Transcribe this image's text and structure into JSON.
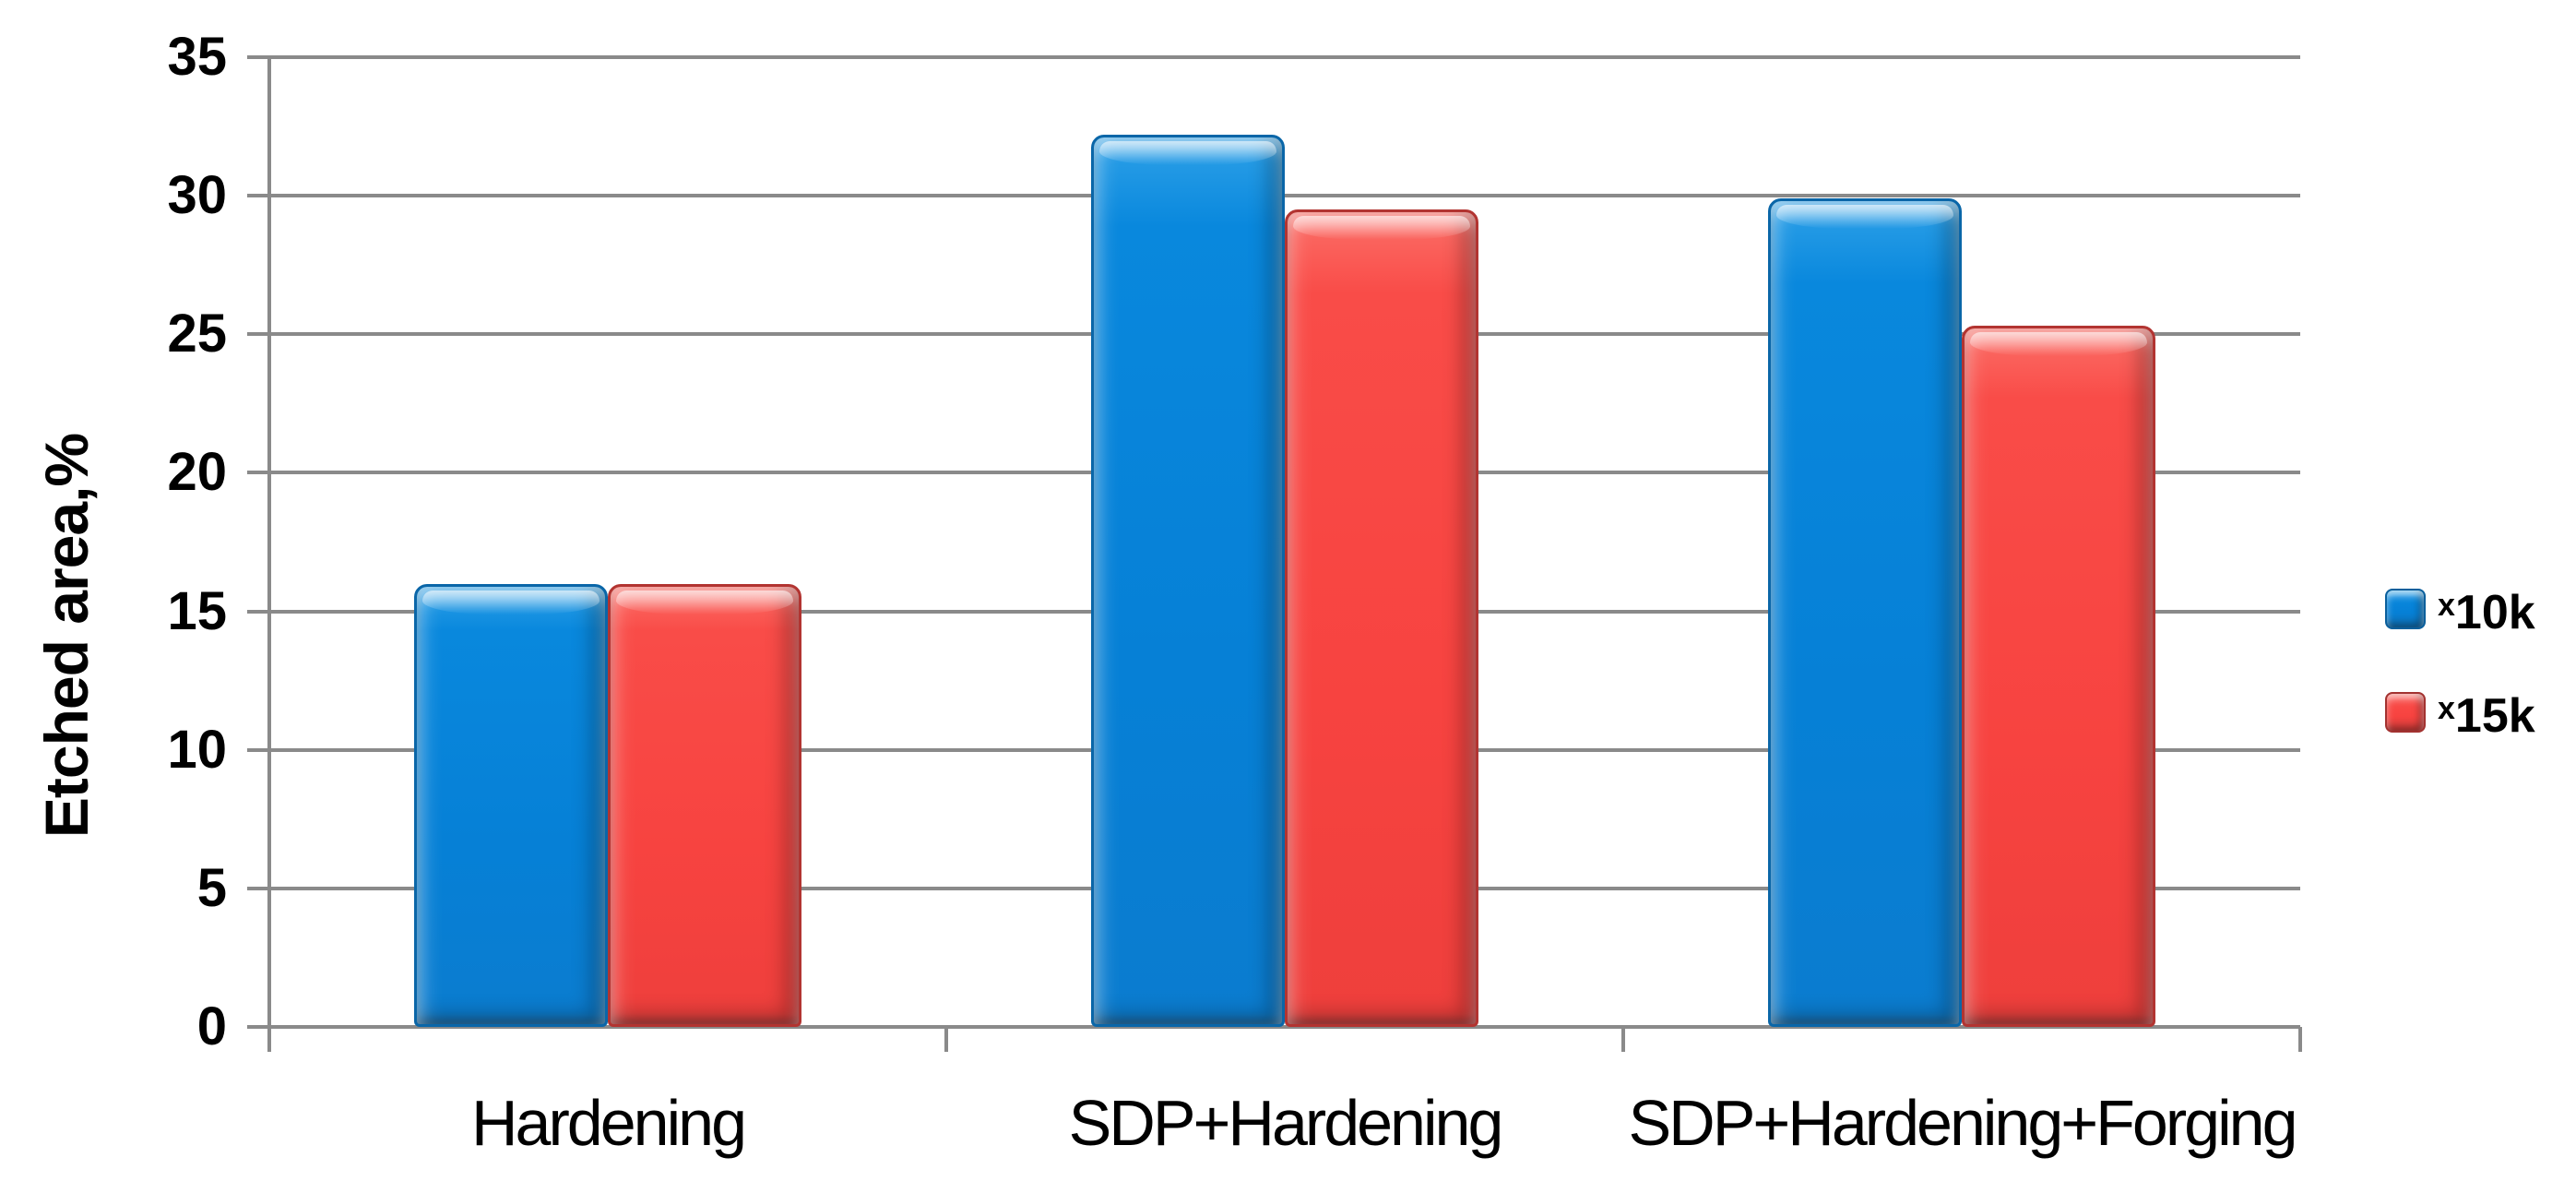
{
  "chart_data": {
    "type": "bar",
    "title": "",
    "categories": [
      "Hardening",
      "SDP+Hardening",
      "SDP+Hardening+Forging"
    ],
    "series": [
      {
        "name": "x10k",
        "legend_sup": "x",
        "legend_base": "10k",
        "color": "#0680D6",
        "values": [
          16,
          32.2,
          29.9
        ]
      },
      {
        "name": "x15k",
        "legend_sup": "x",
        "legend_base": "15k",
        "color": "#F74340",
        "values": [
          16,
          29.5,
          25.3
        ]
      }
    ],
    "xlabel": "",
    "ylabel": "Etched area,%",
    "ylim": [
      0,
      35
    ],
    "yticks": [
      0,
      5,
      10,
      15,
      20,
      25,
      30,
      35
    ],
    "grid": true,
    "legend_position": "right",
    "colors": {
      "grid": "#8A8A8A",
      "axis": "#8A8A8A",
      "text": "#000000"
    }
  }
}
